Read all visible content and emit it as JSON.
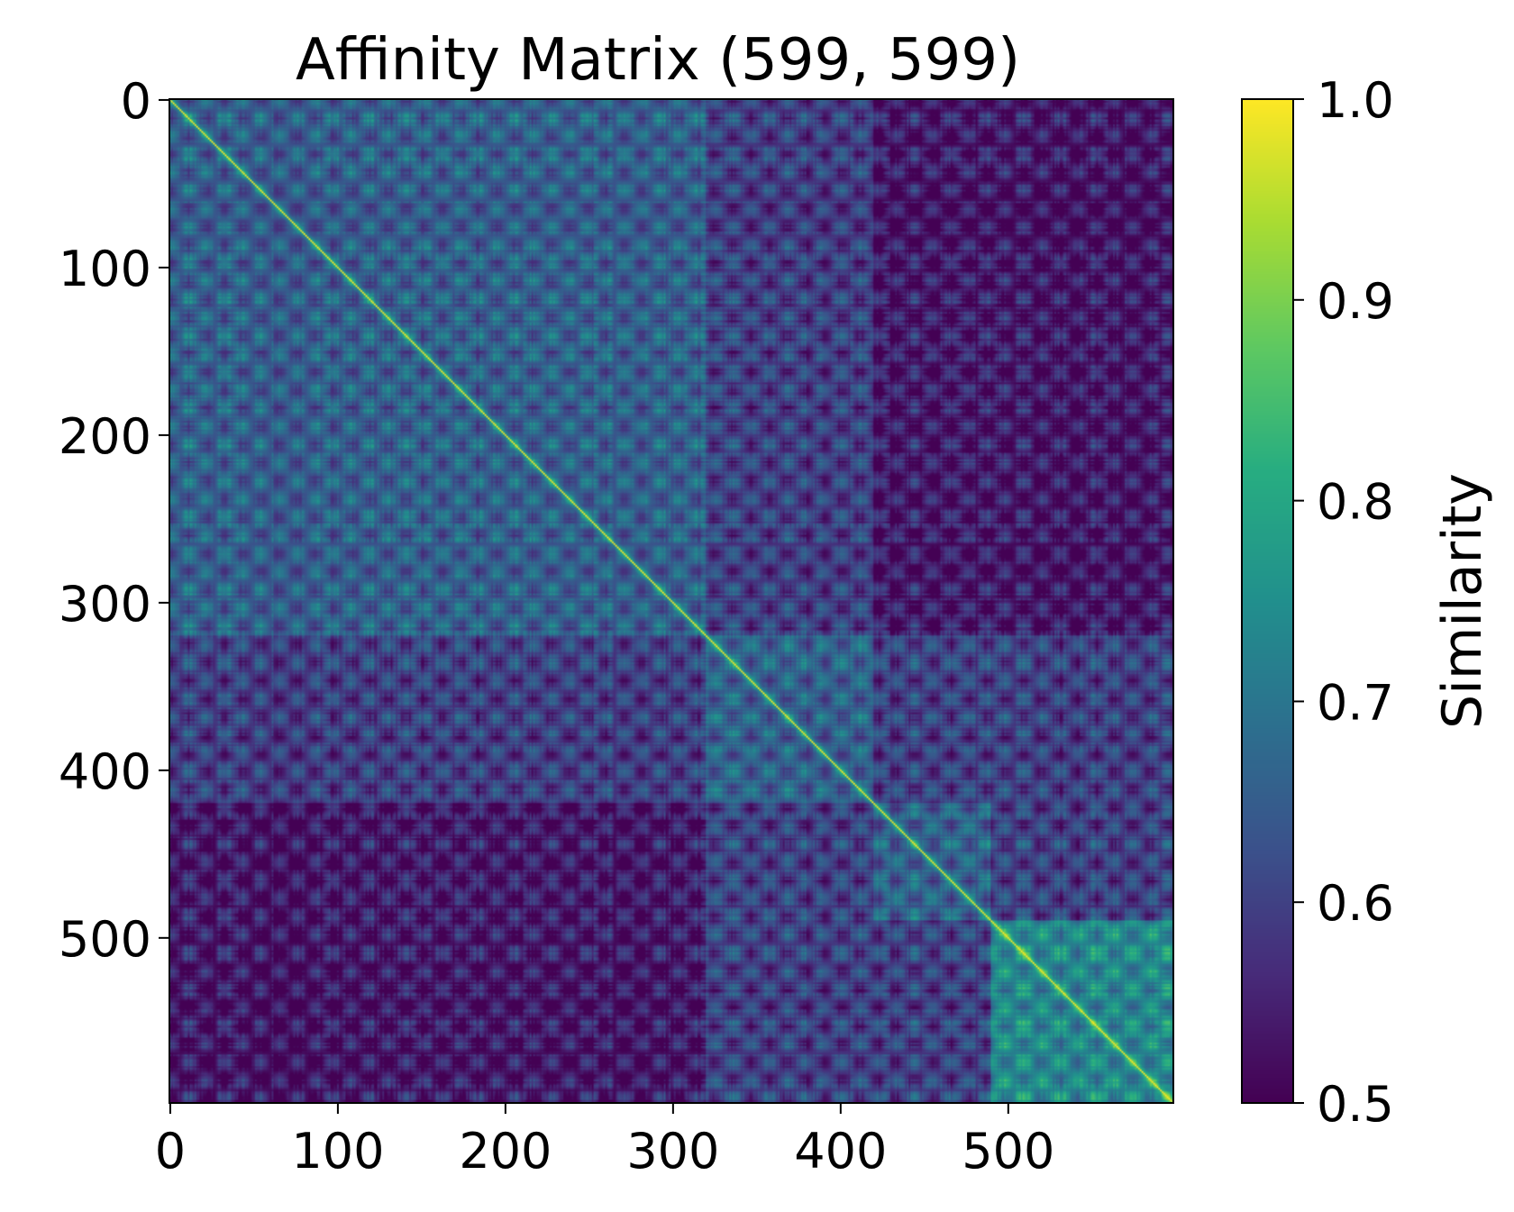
{
  "chart_data": {
    "type": "heatmap",
    "title": "Affinity Matrix (599, 599)",
    "matrix_shape": [
      599,
      599
    ],
    "x_ticks": [
      0,
      100,
      200,
      300,
      400,
      500
    ],
    "y_ticks": [
      0,
      100,
      200,
      300,
      400,
      500
    ],
    "xlim": [
      0,
      599
    ],
    "ylim": [
      599,
      0
    ],
    "colorbar": {
      "label": "Similarity",
      "range": [
        0.5,
        1.0
      ],
      "ticks": [
        "0.5",
        "0.6",
        "0.7",
        "0.8",
        "0.9",
        "1.0"
      ],
      "colormap": "viridis"
    },
    "segment_boundaries": [
      0,
      320,
      420,
      490,
      599
    ],
    "diagonal_value": 1.0,
    "background_value": 0.5,
    "legend": "none",
    "grid": false
  },
  "colors": {
    "viridis_low": "#440154",
    "viridis_mid": "#21918c",
    "viridis_high": "#fde725"
  }
}
